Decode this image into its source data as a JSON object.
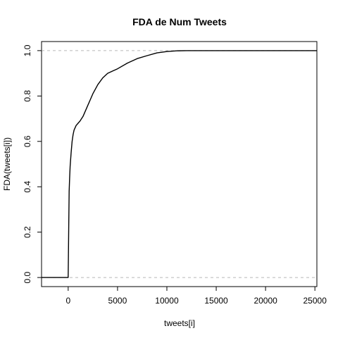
{
  "chart_data": {
    "type": "line",
    "title": "FDA de Num Tweets",
    "xlabel": "tweets[i]",
    "ylabel": "FDA(tweets[i])",
    "xlim": [
      -2700,
      25200
    ],
    "ylim": [
      -0.04,
      1.04
    ],
    "x_ticks": [
      0,
      5000,
      10000,
      15000,
      20000,
      25000
    ],
    "y_ticks": [
      0.0,
      0.2,
      0.4,
      0.6,
      0.8,
      1.0
    ],
    "reference_lines_y": [
      0.0,
      1.0
    ],
    "series": [
      {
        "x": [
          -2700,
          0,
          20,
          60,
          100,
          150,
          200,
          300,
          400,
          500,
          600,
          800,
          1000,
          1200,
          1500,
          2000,
          2500,
          3000,
          3500,
          4000,
          4500,
          5000,
          6000,
          7000,
          8000,
          9000,
          10000,
          11000,
          12000,
          15000,
          20000,
          25200
        ],
        "y": [
          0.0,
          0.0,
          0.08,
          0.25,
          0.38,
          0.44,
          0.49,
          0.55,
          0.6,
          0.63,
          0.65,
          0.67,
          0.68,
          0.69,
          0.71,
          0.76,
          0.81,
          0.85,
          0.88,
          0.9,
          0.91,
          0.92,
          0.945,
          0.965,
          0.978,
          0.99,
          0.996,
          0.999,
          1.0,
          1.0,
          1.0,
          1.0
        ]
      }
    ]
  }
}
